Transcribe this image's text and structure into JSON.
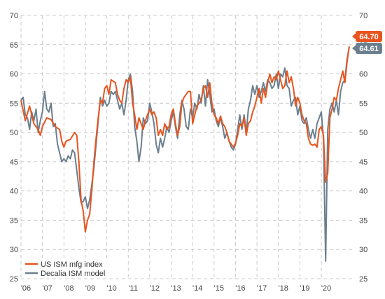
{
  "chart_data": {
    "type": "line",
    "title": "",
    "xlabel": "",
    "ylabel": "",
    "ylim": [
      25,
      70
    ],
    "y_ticks": [
      25,
      30,
      35,
      40,
      45,
      50,
      55,
      60,
      65,
      70
    ],
    "x_range": [
      2006.0,
      2021.5
    ],
    "x_tick_labels": [
      "'06",
      "'07",
      "'08",
      "'09",
      "'10",
      "'11",
      "'12",
      "'13",
      "'14",
      "'15",
      "'16",
      "'17",
      "'18",
      "'19",
      "'20"
    ],
    "x_tick_positions": [
      2006,
      2007,
      2008,
      2009,
      2010,
      2011,
      2012,
      2013,
      2014,
      2015,
      2016,
      2017,
      2018,
      2019,
      2020
    ],
    "grid": true,
    "legend_position": "bottom-left",
    "series": [
      {
        "name": "US ISM mfg index",
        "color": "#e8541e",
        "end_label": "64.70",
        "points": [
          [
            2006.0,
            55.5
          ],
          [
            2006.2,
            52.0
          ],
          [
            2006.4,
            54.5
          ],
          [
            2006.6,
            51.5
          ],
          [
            2006.8,
            50.5
          ],
          [
            2006.9,
            49.5
          ],
          [
            2007.0,
            51.0
          ],
          [
            2007.2,
            52.5
          ],
          [
            2007.4,
            52.2
          ],
          [
            2007.6,
            51.0
          ],
          [
            2007.8,
            50.5
          ],
          [
            2007.9,
            48.5
          ],
          [
            2008.0,
            47.5
          ],
          [
            2008.1,
            48.5
          ],
          [
            2008.3,
            48.8
          ],
          [
            2008.5,
            50.0
          ],
          [
            2008.6,
            49.5
          ],
          [
            2008.7,
            45.0
          ],
          [
            2008.8,
            38.5
          ],
          [
            2008.9,
            36.5
          ],
          [
            2009.0,
            33.0
          ],
          [
            2009.1,
            35.0
          ],
          [
            2009.2,
            36.0
          ],
          [
            2009.3,
            40.0
          ],
          [
            2009.4,
            45.0
          ],
          [
            2009.5,
            49.0
          ],
          [
            2009.6,
            52.5
          ],
          [
            2009.7,
            55.5
          ],
          [
            2009.8,
            55.0
          ],
          [
            2009.9,
            57.5
          ],
          [
            2010.0,
            58.0
          ],
          [
            2010.1,
            56.5
          ],
          [
            2010.2,
            59.0
          ],
          [
            2010.4,
            58.5
          ],
          [
            2010.5,
            56.5
          ],
          [
            2010.6,
            55.5
          ],
          [
            2010.7,
            55.0
          ],
          [
            2010.8,
            57.5
          ],
          [
            2010.9,
            59.0
          ],
          [
            2011.0,
            58.5
          ],
          [
            2011.1,
            59.5
          ],
          [
            2011.2,
            55.0
          ],
          [
            2011.3,
            53.0
          ],
          [
            2011.4,
            50.5
          ],
          [
            2011.5,
            52.5
          ],
          [
            2011.6,
            51.5
          ],
          [
            2011.7,
            50.5
          ],
          [
            2011.8,
            52.0
          ],
          [
            2011.9,
            53.0
          ],
          [
            2012.0,
            54.0
          ],
          [
            2012.1,
            53.0
          ],
          [
            2012.2,
            53.5
          ],
          [
            2012.3,
            52.5
          ],
          [
            2012.4,
            49.5
          ],
          [
            2012.5,
            50.5
          ],
          [
            2012.6,
            49.5
          ],
          [
            2012.7,
            51.5
          ],
          [
            2012.8,
            50.5
          ],
          [
            2012.9,
            51.0
          ],
          [
            2013.0,
            53.0
          ],
          [
            2013.1,
            54.0
          ],
          [
            2013.2,
            51.5
          ],
          [
            2013.3,
            49.5
          ],
          [
            2013.4,
            51.0
          ],
          [
            2013.5,
            55.0
          ],
          [
            2013.6,
            56.0
          ],
          [
            2013.7,
            56.5
          ],
          [
            2013.8,
            57.0
          ],
          [
            2013.9,
            57.0
          ],
          [
            2014.0,
            51.5
          ],
          [
            2014.1,
            53.0
          ],
          [
            2014.2,
            54.5
          ],
          [
            2014.3,
            55.0
          ],
          [
            2014.4,
            55.5
          ],
          [
            2014.5,
            57.5
          ],
          [
            2014.6,
            58.0
          ],
          [
            2014.7,
            56.0
          ],
          [
            2014.8,
            58.5
          ],
          [
            2014.9,
            55.0
          ],
          [
            2015.0,
            53.0
          ],
          [
            2015.1,
            52.5
          ],
          [
            2015.2,
            51.5
          ],
          [
            2015.3,
            52.8
          ],
          [
            2015.4,
            51.5
          ],
          [
            2015.5,
            51.0
          ],
          [
            2015.6,
            50.0
          ],
          [
            2015.7,
            48.5
          ],
          [
            2015.8,
            48.0
          ],
          [
            2015.9,
            47.5
          ],
          [
            2016.0,
            48.2
          ],
          [
            2016.1,
            49.5
          ],
          [
            2016.2,
            51.5
          ],
          [
            2016.3,
            51.0
          ],
          [
            2016.4,
            52.5
          ],
          [
            2016.5,
            49.5
          ],
          [
            2016.6,
            51.5
          ],
          [
            2016.7,
            52.0
          ],
          [
            2016.8,
            53.5
          ],
          [
            2016.9,
            54.5
          ],
          [
            2017.0,
            56.0
          ],
          [
            2017.1,
            57.5
          ],
          [
            2017.2,
            55.0
          ],
          [
            2017.3,
            57.5
          ],
          [
            2017.4,
            56.0
          ],
          [
            2017.5,
            58.5
          ],
          [
            2017.6,
            60.0
          ],
          [
            2017.7,
            58.5
          ],
          [
            2017.8,
            59.5
          ],
          [
            2017.9,
            59.0
          ],
          [
            2018.0,
            60.5
          ],
          [
            2018.1,
            59.0
          ],
          [
            2018.2,
            57.5
          ],
          [
            2018.3,
            58.0
          ],
          [
            2018.4,
            60.5
          ],
          [
            2018.5,
            58.5
          ],
          [
            2018.6,
            59.5
          ],
          [
            2018.7,
            57.5
          ],
          [
            2018.8,
            54.5
          ],
          [
            2018.9,
            56.0
          ],
          [
            2019.0,
            55.0
          ],
          [
            2019.1,
            53.0
          ],
          [
            2019.2,
            52.0
          ],
          [
            2019.3,
            51.5
          ],
          [
            2019.4,
            49.0
          ],
          [
            2019.5,
            48.0
          ],
          [
            2019.6,
            47.8
          ],
          [
            2019.7,
            48.0
          ],
          [
            2019.8,
            47.5
          ],
          [
            2019.9,
            50.5
          ],
          [
            2020.0,
            51.0
          ],
          [
            2020.1,
            49.5
          ],
          [
            2020.2,
            41.5
          ],
          [
            2020.3,
            43.0
          ],
          [
            2020.4,
            52.5
          ],
          [
            2020.5,
            54.0
          ],
          [
            2020.6,
            56.0
          ],
          [
            2020.7,
            55.5
          ],
          [
            2020.8,
            57.5
          ],
          [
            2020.9,
            59.0
          ],
          [
            2021.0,
            60.5
          ],
          [
            2021.1,
            58.5
          ],
          [
            2021.2,
            62.0
          ],
          [
            2021.3,
            64.7
          ]
        ]
      },
      {
        "name": "Decalia ISM model",
        "color": "#6b7f8e",
        "end_label": "64.61",
        "points": [
          [
            2006.0,
            55.5
          ],
          [
            2006.1,
            56.0
          ],
          [
            2006.2,
            53.0
          ],
          [
            2006.3,
            52.5
          ],
          [
            2006.4,
            50.5
          ],
          [
            2006.5,
            53.5
          ],
          [
            2006.6,
            52.0
          ],
          [
            2006.7,
            54.0
          ],
          [
            2006.8,
            50.0
          ],
          [
            2006.9,
            52.0
          ],
          [
            2007.0,
            53.5
          ],
          [
            2007.1,
            57.0
          ],
          [
            2007.2,
            54.0
          ],
          [
            2007.3,
            53.5
          ],
          [
            2007.4,
            55.0
          ],
          [
            2007.5,
            51.0
          ],
          [
            2007.6,
            51.5
          ],
          [
            2007.7,
            48.0
          ],
          [
            2007.8,
            46.5
          ],
          [
            2007.9,
            45.0
          ],
          [
            2008.0,
            45.5
          ],
          [
            2008.1,
            45.0
          ],
          [
            2008.2,
            46.0
          ],
          [
            2008.3,
            45.5
          ],
          [
            2008.4,
            47.0
          ],
          [
            2008.5,
            46.5
          ],
          [
            2008.6,
            43.5
          ],
          [
            2008.7,
            40.5
          ],
          [
            2008.8,
            38.0
          ],
          [
            2008.9,
            38.2
          ],
          [
            2009.0,
            39.0
          ],
          [
            2009.1,
            37.0
          ],
          [
            2009.2,
            38.5
          ],
          [
            2009.3,
            41.0
          ],
          [
            2009.4,
            44.0
          ],
          [
            2009.5,
            48.0
          ],
          [
            2009.6,
            52.0
          ],
          [
            2009.7,
            56.0
          ],
          [
            2009.8,
            54.5
          ],
          [
            2009.9,
            55.5
          ],
          [
            2010.0,
            54.5
          ],
          [
            2010.1,
            55.0
          ],
          [
            2010.2,
            57.0
          ],
          [
            2010.3,
            56.5
          ],
          [
            2010.4,
            57.0
          ],
          [
            2010.5,
            55.5
          ],
          [
            2010.6,
            54.0
          ],
          [
            2010.7,
            55.0
          ],
          [
            2010.8,
            53.0
          ],
          [
            2010.9,
            55.5
          ],
          [
            2011.0,
            59.0
          ],
          [
            2011.1,
            60.0
          ],
          [
            2011.2,
            57.0
          ],
          [
            2011.3,
            51.0
          ],
          [
            2011.4,
            48.5
          ],
          [
            2011.5,
            45.0
          ],
          [
            2011.6,
            47.5
          ],
          [
            2011.7,
            52.5
          ],
          [
            2011.8,
            51.5
          ],
          [
            2011.9,
            52.0
          ],
          [
            2012.0,
            55.0
          ],
          [
            2012.1,
            53.5
          ],
          [
            2012.2,
            51.5
          ],
          [
            2012.3,
            48.0
          ],
          [
            2012.4,
            46.5
          ],
          [
            2012.5,
            49.0
          ],
          [
            2012.6,
            47.5
          ],
          [
            2012.7,
            49.0
          ],
          [
            2012.8,
            51.0
          ],
          [
            2012.9,
            50.0
          ],
          [
            2013.0,
            52.0
          ],
          [
            2013.1,
            53.5
          ],
          [
            2013.2,
            51.0
          ],
          [
            2013.3,
            49.0
          ],
          [
            2013.4,
            53.0
          ],
          [
            2013.5,
            55.5
          ],
          [
            2013.6,
            54.0
          ],
          [
            2013.7,
            51.0
          ],
          [
            2013.8,
            50.5
          ],
          [
            2013.9,
            54.0
          ],
          [
            2014.0,
            52.5
          ],
          [
            2014.1,
            55.0
          ],
          [
            2014.2,
            54.0
          ],
          [
            2014.3,
            56.5
          ],
          [
            2014.4,
            55.0
          ],
          [
            2014.5,
            58.0
          ],
          [
            2014.6,
            54.5
          ],
          [
            2014.7,
            59.0
          ],
          [
            2014.8,
            56.5
          ],
          [
            2014.9,
            53.5
          ],
          [
            2015.0,
            54.0
          ],
          [
            2015.1,
            52.0
          ],
          [
            2015.2,
            51.0
          ],
          [
            2015.3,
            52.5
          ],
          [
            2015.4,
            51.0
          ],
          [
            2015.5,
            49.0
          ],
          [
            2015.6,
            50.0
          ],
          [
            2015.7,
            48.5
          ],
          [
            2015.8,
            47.5
          ],
          [
            2015.9,
            47.0
          ],
          [
            2016.0,
            48.0
          ],
          [
            2016.1,
            50.5
          ],
          [
            2016.2,
            53.0
          ],
          [
            2016.3,
            50.5
          ],
          [
            2016.4,
            53.0
          ],
          [
            2016.5,
            50.0
          ],
          [
            2016.6,
            54.0
          ],
          [
            2016.7,
            55.5
          ],
          [
            2016.8,
            58.0
          ],
          [
            2016.9,
            56.5
          ],
          [
            2017.0,
            58.0
          ],
          [
            2017.1,
            56.0
          ],
          [
            2017.2,
            57.0
          ],
          [
            2017.3,
            58.5
          ],
          [
            2017.4,
            57.0
          ],
          [
            2017.5,
            59.0
          ],
          [
            2017.6,
            58.5
          ],
          [
            2017.7,
            57.5
          ],
          [
            2017.8,
            58.0
          ],
          [
            2017.9,
            60.0
          ],
          [
            2018.0,
            57.5
          ],
          [
            2018.1,
            60.0
          ],
          [
            2018.2,
            59.5
          ],
          [
            2018.3,
            61.0
          ],
          [
            2018.4,
            58.0
          ],
          [
            2018.5,
            57.5
          ],
          [
            2018.6,
            54.5
          ],
          [
            2018.7,
            55.5
          ],
          [
            2018.8,
            56.0
          ],
          [
            2018.9,
            53.0
          ],
          [
            2019.0,
            54.5
          ],
          [
            2019.1,
            52.0
          ],
          [
            2019.2,
            51.5
          ],
          [
            2019.3,
            52.5
          ],
          [
            2019.4,
            50.5
          ],
          [
            2019.5,
            49.0
          ],
          [
            2019.6,
            50.5
          ],
          [
            2019.7,
            49.0
          ],
          [
            2019.8,
            51.5
          ],
          [
            2019.9,
            52.5
          ],
          [
            2020.0,
            53.5
          ],
          [
            2020.1,
            49.0
          ],
          [
            2020.2,
            28.0
          ],
          [
            2020.3,
            50.5
          ],
          [
            2020.4,
            54.0
          ],
          [
            2020.5,
            55.0
          ],
          [
            2020.6,
            53.5
          ],
          [
            2020.7,
            55.5
          ],
          [
            2020.8,
            53.0
          ],
          [
            2020.9,
            57.0
          ],
          [
            2021.0,
            58.5
          ],
          [
            2021.1,
            59.0
          ],
          [
            2021.2,
            62.5
          ],
          [
            2021.3,
            64.61
          ]
        ]
      }
    ]
  }
}
